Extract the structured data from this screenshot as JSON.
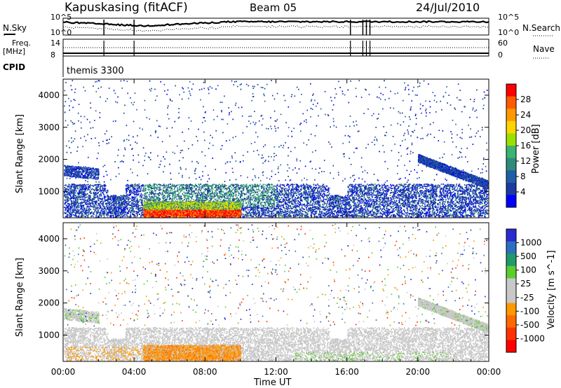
{
  "header": {
    "station": "Kapuskasing (fitACF)",
    "beam": "Beam 05",
    "date": "24/Jul/2010"
  },
  "top_panels": {
    "nsky_label": "N.Sky",
    "nsearch_label": "N.Search",
    "freq_label": "Freq.",
    "freq_unit": "[MHz]",
    "nave_label": "Nave",
    "cpid_label": "CPID",
    "noise_ticks_left": [
      "10^5",
      "10^0"
    ],
    "noise_ticks_right": [
      "10^5",
      "10^0"
    ],
    "freq_ticks": [
      "14",
      "8"
    ],
    "nave_ticks": [
      "60",
      "0"
    ],
    "cpid_name": "themis 3300"
  },
  "axes": {
    "x_ticks": [
      "00:00",
      "04:00",
      "08:00",
      "12:00",
      "16:00",
      "20:00",
      "00:00"
    ],
    "x_label": "Time UT",
    "y_ticks": [
      "1000",
      "2000",
      "3000",
      "4000"
    ],
    "y_label": "Slant Range [km]"
  },
  "chart_data": [
    {
      "type": "heatmap",
      "x_range_hours": [
        0,
        24
      ],
      "y_range_km": [
        180,
        4500
      ],
      "colorbar": {
        "label": "Power [dB]",
        "ticks": [
          "28",
          "24",
          "20",
          "16",
          "12",
          "8",
          "4"
        ],
        "colors": [
          "#ff0000",
          "#ff5a00",
          "#ff9900",
          "#ffd500",
          "#9be000",
          "#3cb371",
          "#2e8b7a",
          "#1f5fa8",
          "#1d3aa0",
          "#0000ff"
        ]
      },
      "features": [
        {
          "desc": "night-side echo band",
          "hours": [
            0,
            24
          ],
          "km": [
            250,
            1250
          ],
          "dominant_db": 4
        },
        {
          "desc": "strong echoes",
          "hours": [
            4.5,
            10
          ],
          "km": [
            200,
            600
          ],
          "dominant_db": 28
        },
        {
          "desc": "mid-range patch",
          "hours": [
            4.5,
            12
          ],
          "km": [
            600,
            1250
          ],
          "dominant_db": 12
        },
        {
          "desc": "far range band",
          "hours": [
            0,
            2
          ],
          "km": [
            1500,
            1900
          ],
          "dominant_db": 6
        },
        {
          "desc": "far range band",
          "hours": [
            20,
            24
          ],
          "km": [
            1200,
            2100
          ],
          "dominant_db": 6
        }
      ]
    },
    {
      "type": "heatmap",
      "x_range_hours": [
        0,
        24
      ],
      "y_range_km": [
        180,
        4500
      ],
      "colorbar": {
        "label": "Velocity [m s^-1]",
        "ticks": [
          "1000",
          "500",
          "100",
          "25",
          "-25",
          "-100",
          "-500",
          "-1000"
        ],
        "colors": [
          "#2b2bcf",
          "#2e6fc0",
          "#1f9a6a",
          "#5ccc2e",
          "#c8c8c8",
          "#c8c8c8",
          "#ff9900",
          "#ff6a00",
          "#ff3300",
          "#ff0000"
        ]
      },
      "features": [
        {
          "desc": "ground scatter band",
          "hours": [
            0,
            24
          ],
          "km": [
            250,
            1250
          ],
          "dominant_velocity": 0
        },
        {
          "desc": "negative velocity patch",
          "hours": [
            0.5,
            10
          ],
          "km": [
            200,
            700
          ],
          "dominant_velocity": -100
        },
        {
          "desc": "positive velocity patches",
          "hours": [
            13,
            22
          ],
          "km": [
            200,
            500
          ],
          "dominant_velocity": 100
        },
        {
          "desc": "far ground scatter",
          "hours": [
            20,
            24
          ],
          "km": [
            1200,
            2100
          ],
          "dominant_velocity": 0
        }
      ]
    }
  ]
}
